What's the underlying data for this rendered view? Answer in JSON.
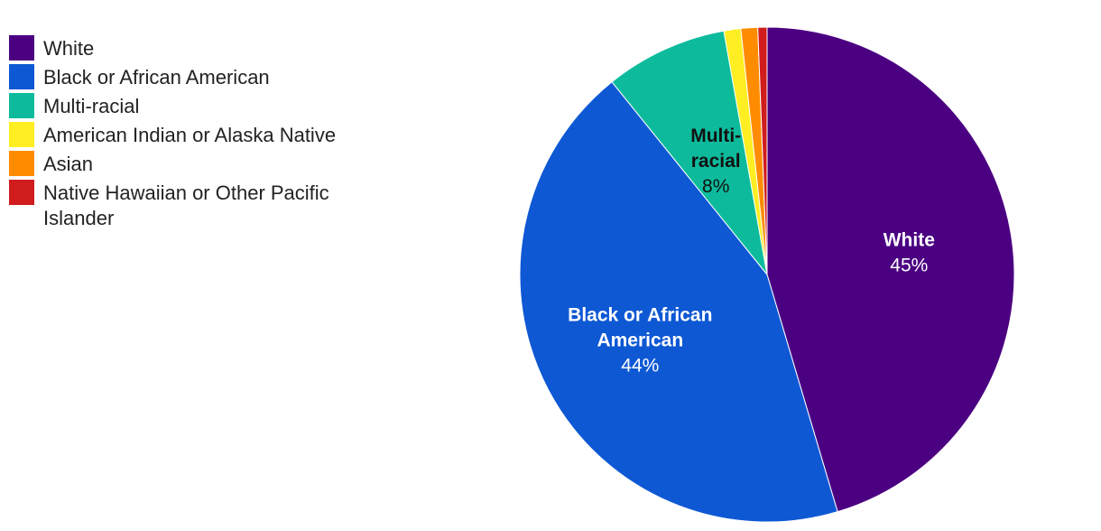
{
  "chart_data": {
    "type": "pie",
    "slices": [
      {
        "label": "White",
        "value": 45.4,
        "display": "45%",
        "color": "#4b0082",
        "label_color": "#ffffff",
        "label_lines": [
          "White"
        ]
      },
      {
        "label": "Black or African American",
        "value": 43.8,
        "display": "44%",
        "color": "#0e58d4",
        "label_color": "#ffffff",
        "label_lines": [
          "Black or African",
          "American"
        ]
      },
      {
        "label": "Multi-racial",
        "value": 8.0,
        "display": "8%",
        "color": "#0dbb9c",
        "label_color": "#111111",
        "label_lines": [
          "Multi-",
          "racial"
        ]
      },
      {
        "label": "American Indian or Alaska Native",
        "value": 1.1,
        "display": "",
        "color": "#ffee22",
        "label_color": "#111111",
        "label_lines": []
      },
      {
        "label": "Asian",
        "value": 1.1,
        "display": "",
        "color": "#ff8c00",
        "label_color": "#111111",
        "label_lines": []
      },
      {
        "label": "Native Hawaiian or Other Pacific Islander",
        "value": 0.6,
        "display": "",
        "color": "#d01c1c",
        "label_color": "#111111",
        "label_lines": []
      }
    ],
    "legend": {
      "position": "top-left",
      "entries": [
        "White",
        "Black or African American",
        "Multi-racial",
        "American Indian or Alaska Native",
        "Asian",
        "Native Hawaiian or Other Pacific Islander"
      ]
    }
  }
}
